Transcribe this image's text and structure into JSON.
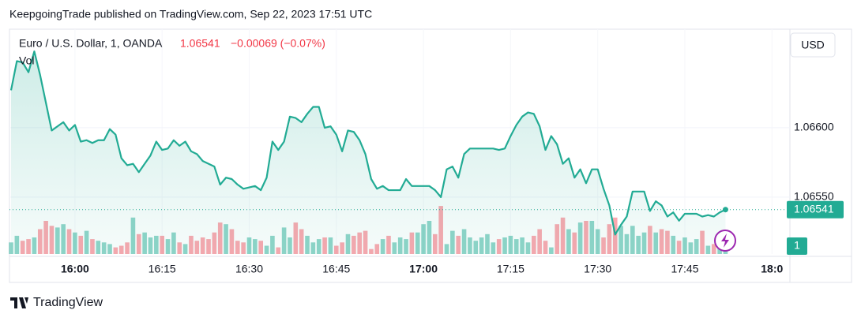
{
  "header": {
    "publisher": "KeepgoingTrade published on TradingView.com, Sep 22, 2023 17:51 UTC"
  },
  "footer": {
    "brand": "TradingView"
  },
  "chart_data": {
    "type": "line",
    "symbol": "Euro / U.S. Dollar, 1, OANDA",
    "last_price": "1.06541",
    "change": "−0.00069 (−0.07%)",
    "volume_label": "Vol",
    "currency": "USD",
    "last_price_badge": "1.06541",
    "volume_badge": "1",
    "color": "#22ab94",
    "up_color": "#22ab94",
    "down_color": "#f7525f",
    "ylim": [
      1.06509,
      1.06671
    ],
    "yticks": [
      {
        "value": 1.0655,
        "label": "1.06550"
      },
      {
        "value": 1.066,
        "label": "1.06600"
      }
    ],
    "vlim": [
      0,
      100
    ],
    "categories": [
      null,
      null,
      null,
      null,
      null,
      null,
      null,
      null,
      null,
      null,
      null,
      "16:00",
      null,
      null,
      null,
      null,
      null,
      null,
      null,
      null,
      null,
      null,
      null,
      null,
      null,
      null,
      "16:15",
      null,
      null,
      null,
      null,
      null,
      null,
      null,
      null,
      null,
      null,
      null,
      null,
      null,
      null,
      "16:30",
      null,
      null,
      null,
      null,
      null,
      null,
      null,
      null,
      null,
      null,
      null,
      null,
      null,
      null,
      "16:45",
      null,
      null,
      null,
      null,
      null,
      null,
      null,
      null,
      null,
      null,
      null,
      null,
      null,
      null,
      "17:00",
      null,
      null,
      null,
      null,
      null,
      null,
      null,
      null,
      null,
      null,
      null,
      null,
      null,
      null,
      "17:15",
      null,
      null,
      null,
      null,
      null,
      null,
      null,
      null,
      null,
      null,
      null,
      null,
      null,
      null,
      "17:30",
      null,
      null,
      null,
      null,
      null,
      null,
      null,
      null,
      null,
      null,
      null,
      null,
      null,
      null,
      "17:45",
      null,
      null,
      null,
      null,
      null,
      null,
      null,
      null,
      null,
      null,
      null,
      null,
      null,
      null,
      "18:0",
      null,
      null
    ],
    "values": [
      1.06627,
      1.06648,
      1.06647,
      1.0664,
      1.06655,
      1.06638,
      1.06618,
      1.06598,
      1.06601,
      1.06604,
      1.06598,
      1.06602,
      1.0659,
      1.06591,
      1.06589,
      1.06591,
      1.06591,
      1.06599,
      1.06595,
      1.06578,
      1.06573,
      1.06574,
      1.06568,
      1.06574,
      1.0658,
      1.0659,
      1.06584,
      1.06585,
      1.06591,
      1.06587,
      1.0659,
      1.06583,
      1.06581,
      1.06576,
      1.06574,
      1.06572,
      1.06559,
      1.06564,
      1.06563,
      1.06559,
      1.06556,
      1.06557,
      1.06558,
      1.06555,
      1.06564,
      1.0659,
      1.06584,
      1.0659,
      1.06608,
      1.06607,
      1.06604,
      1.0661,
      1.06615,
      1.06615,
      1.066,
      1.06601,
      1.06595,
      1.06583,
      1.06598,
      1.06597,
      1.06591,
      1.06581,
      1.06563,
      1.06556,
      1.06558,
      1.06555,
      1.06555,
      1.06555,
      1.06563,
      1.06558,
      1.06558,
      1.06558,
      1.06558,
      1.06555,
      1.0655,
      1.0657,
      1.06572,
      1.06564,
      1.06581,
      1.06585,
      1.06585,
      1.06585,
      1.06585,
      1.06585,
      1.06584,
      1.06585,
      1.06594,
      1.06602,
      1.06608,
      1.06611,
      1.0661,
      1.06601,
      1.06584,
      1.06594,
      1.06588,
      1.06574,
      1.06578,
      1.06564,
      1.0657,
      1.0656,
      1.0657,
      1.0657,
      1.06556,
      1.06544,
      1.06523,
      1.0653,
      1.06536,
      1.06554,
      1.06554,
      1.06554,
      1.0654,
      1.06547,
      1.06544,
      1.06536,
      1.06539,
      1.06533,
      1.06538,
      1.06538,
      1.06538,
      1.06536,
      1.06537,
      1.06536,
      1.06539,
      1.06541,
      null,
      null,
      null,
      null,
      null,
      null,
      null,
      null,
      null,
      null
    ],
    "volume": [
      14,
      22,
      16,
      18,
      20,
      30,
      40,
      34,
      32,
      36,
      30,
      26,
      22,
      28,
      18,
      16,
      14,
      12,
      8,
      10,
      14,
      44,
      24,
      26,
      20,
      22,
      22,
      18,
      26,
      14,
      12,
      22,
      16,
      20,
      18,
      26,
      38,
      36,
      30,
      16,
      14,
      20,
      18,
      16,
      10,
      22,
      8,
      32,
      20,
      38,
      30,
      22,
      14,
      18,
      20,
      20,
      10,
      14,
      24,
      22,
      26,
      28,
      6,
      12,
      18,
      22,
      14,
      20,
      18,
      26,
      26,
      36,
      40,
      24,
      58,
      12,
      28,
      22,
      30,
      20,
      16,
      20,
      24,
      14,
      18,
      20,
      22,
      18,
      20,
      14,
      22,
      30,
      16,
      8,
      36,
      44,
      30,
      26,
      38,
      40,
      40,
      30,
      20,
      36,
      44,
      34,
      24,
      34,
      22,
      26,
      34,
      26,
      30,
      28,
      22,
      16,
      20,
      14,
      18,
      28,
      10,
      12,
      16,
      20,
      null,
      null,
      null,
      null,
      null,
      null,
      null,
      null,
      null,
      null
    ]
  }
}
